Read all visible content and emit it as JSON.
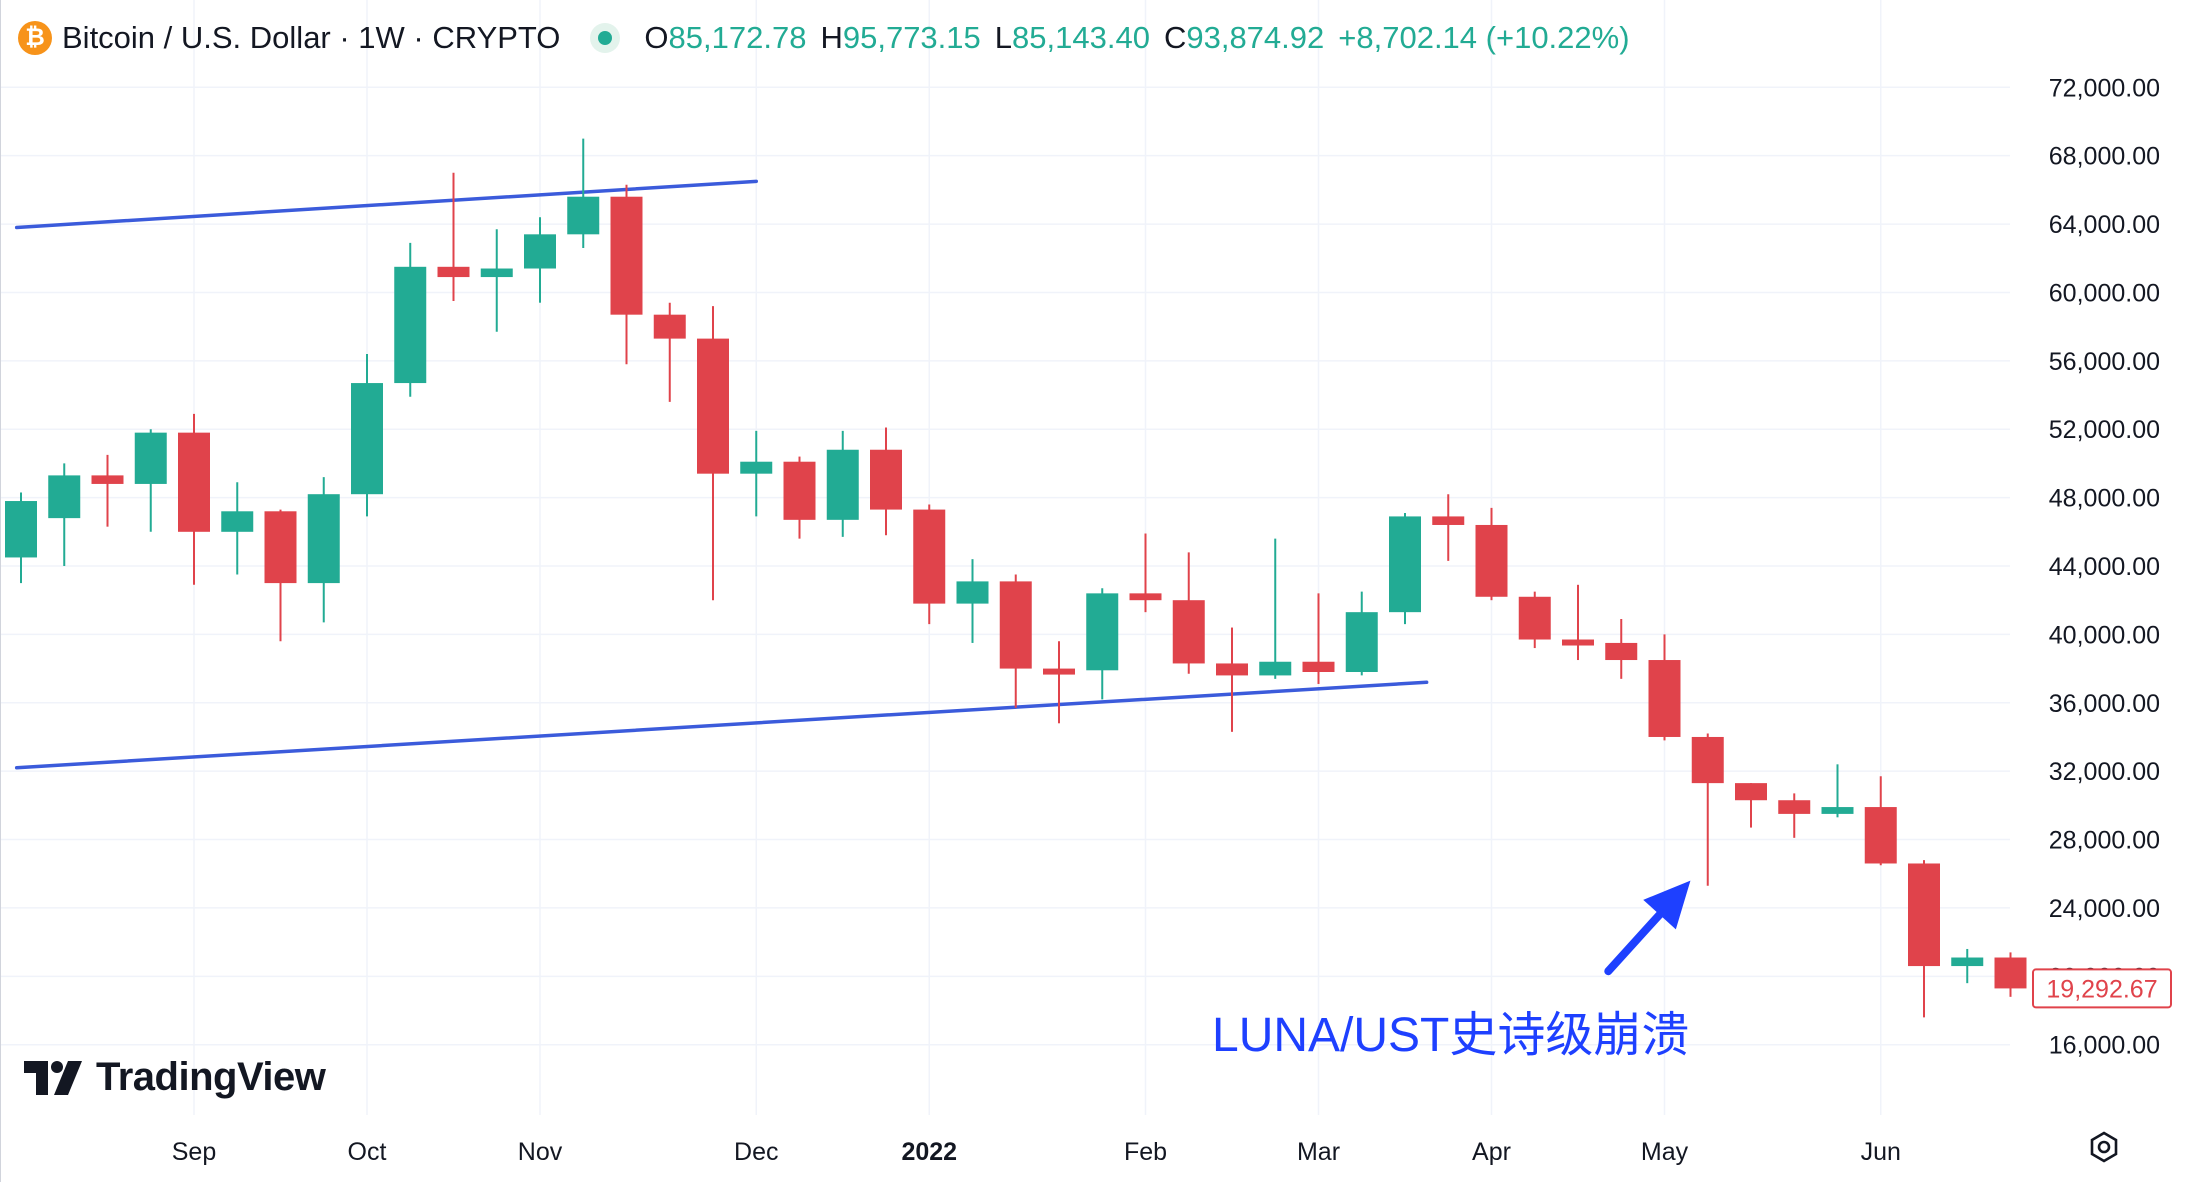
{
  "header": {
    "symbol_title": "Bitcoin / U.S. Dollar · 1W · CRYPTO",
    "icon": "bitcoin-icon",
    "open_label": "O",
    "open_value": "85,172.78",
    "high_label": "H",
    "high_value": "95,773.15",
    "low_label": "L",
    "low_value": "85,143.40",
    "close_label": "C",
    "close_value": "93,874.92",
    "change_value": "+8,702.14 (+10.22%)"
  },
  "logo": {
    "text": "TradingView"
  },
  "annotation": {
    "text": "LUNA/UST史诗级崩溃"
  },
  "colors": {
    "up": "#22ab94",
    "down": "#e0434b",
    "trendline": "#3b5bdb",
    "arrow": "#1e40ff",
    "grid": "#f0f3fa"
  },
  "chart_data": {
    "type": "candlestick",
    "interval": "1W",
    "y_axis": {
      "range": [
        13000,
        75000
      ],
      "ticks": [
        72000,
        68000,
        64000,
        60000,
        56000,
        52000,
        48000,
        44000,
        40000,
        36000,
        32000,
        28000,
        24000,
        20000,
        16000
      ],
      "tick_labels": [
        "72,000.00",
        "68,000.00",
        "64,000.00",
        "60,000.00",
        "56,000.00",
        "52,000.00",
        "48,000.00",
        "44,000.00",
        "40,000.00",
        "36,000.00",
        "32,000.00",
        "28,000.00",
        "24,000.00",
        "20,000.00",
        "16,000.00"
      ]
    },
    "x_axis": {
      "labels": [
        {
          "text": "Sep",
          "index": 4,
          "bold": false
        },
        {
          "text": "Oct",
          "index": 8,
          "bold": false
        },
        {
          "text": "Nov",
          "index": 12,
          "bold": false
        },
        {
          "text": "Dec",
          "index": 17,
          "bold": false
        },
        {
          "text": "2022",
          "index": 21,
          "bold": true
        },
        {
          "text": "Feb",
          "index": 26,
          "bold": false
        },
        {
          "text": "Mar",
          "index": 30,
          "bold": false
        },
        {
          "text": "Apr",
          "index": 34,
          "bold": false
        },
        {
          "text": "May",
          "index": 38,
          "bold": false
        },
        {
          "text": "Jun",
          "index": 43,
          "bold": false
        }
      ]
    },
    "candles": [
      {
        "o": 44500,
        "h": 48300,
        "l": 43000,
        "c": 47800
      },
      {
        "o": 46800,
        "h": 50000,
        "l": 44000,
        "c": 49300
      },
      {
        "o": 49300,
        "h": 50500,
        "l": 46300,
        "c": 48800
      },
      {
        "o": 48800,
        "h": 52000,
        "l": 46000,
        "c": 51800
      },
      {
        "o": 51800,
        "h": 52900,
        "l": 42900,
        "c": 46000
      },
      {
        "o": 46000,
        "h": 48900,
        "l": 43500,
        "c": 47200
      },
      {
        "o": 47200,
        "h": 47300,
        "l": 39600,
        "c": 43000
      },
      {
        "o": 43000,
        "h": 49200,
        "l": 40700,
        "c": 48200
      },
      {
        "o": 48200,
        "h": 56400,
        "l": 46900,
        "c": 54700
      },
      {
        "o": 54700,
        "h": 62900,
        "l": 53900,
        "c": 61500
      },
      {
        "o": 61500,
        "h": 67000,
        "l": 59500,
        "c": 60900
      },
      {
        "o": 60900,
        "h": 63700,
        "l": 57700,
        "c": 61400
      },
      {
        "o": 61400,
        "h": 64400,
        "l": 59400,
        "c": 63400
      },
      {
        "o": 63400,
        "h": 69000,
        "l": 62600,
        "c": 65600
      },
      {
        "o": 65600,
        "h": 66300,
        "l": 55800,
        "c": 58700
      },
      {
        "o": 58700,
        "h": 59400,
        "l": 53600,
        "c": 57300
      },
      {
        "o": 57300,
        "h": 59200,
        "l": 42000,
        "c": 49400
      },
      {
        "o": 49400,
        "h": 51900,
        "l": 46900,
        "c": 50100
      },
      {
        "o": 50100,
        "h": 50400,
        "l": 45600,
        "c": 46700
      },
      {
        "o": 46700,
        "h": 51900,
        "l": 45700,
        "c": 50800
      },
      {
        "o": 50800,
        "h": 52100,
        "l": 45800,
        "c": 47300
      },
      {
        "o": 47300,
        "h": 47600,
        "l": 40600,
        "c": 41800
      },
      {
        "o": 41800,
        "h": 44400,
        "l": 39500,
        "c": 43100
      },
      {
        "o": 43100,
        "h": 43500,
        "l": 35700,
        "c": 38000
      },
      {
        "o": 38000,
        "h": 39600,
        "l": 34800,
        "c": 37900
      },
      {
        "o": 37900,
        "h": 42700,
        "l": 36200,
        "c": 42400
      },
      {
        "o": 42400,
        "h": 45900,
        "l": 41300,
        "c": 42000
      },
      {
        "o": 42000,
        "h": 44800,
        "l": 37700,
        "c": 38300
      },
      {
        "o": 38300,
        "h": 40400,
        "l": 34300,
        "c": 37600
      },
      {
        "o": 37600,
        "h": 45600,
        "l": 37400,
        "c": 38400
      },
      {
        "o": 38400,
        "h": 42400,
        "l": 37100,
        "c": 37800
      },
      {
        "o": 37800,
        "h": 42500,
        "l": 37600,
        "c": 41300
      },
      {
        "o": 41300,
        "h": 47100,
        "l": 40600,
        "c": 46900
      },
      {
        "o": 46900,
        "h": 48200,
        "l": 44300,
        "c": 46400
      },
      {
        "o": 46400,
        "h": 47400,
        "l": 42000,
        "c": 42200
      },
      {
        "o": 42200,
        "h": 42500,
        "l": 39200,
        "c": 39700
      },
      {
        "o": 39700,
        "h": 42900,
        "l": 38500,
        "c": 39500
      },
      {
        "o": 39500,
        "h": 40900,
        "l": 37400,
        "c": 38500
      },
      {
        "o": 38500,
        "h": 40000,
        "l": 33800,
        "c": 34000
      },
      {
        "o": 34000,
        "h": 34200,
        "l": 25300,
        "c": 31300
      },
      {
        "o": 31300,
        "h": 31300,
        "l": 28700,
        "c": 30300
      },
      {
        "o": 30300,
        "h": 30700,
        "l": 28100,
        "c": 29500
      },
      {
        "o": 29500,
        "h": 32400,
        "l": 29300,
        "c": 29900
      },
      {
        "o": 29900,
        "h": 31700,
        "l": 26500,
        "c": 26600
      },
      {
        "o": 26600,
        "h": 26800,
        "l": 17600,
        "c": 20600
      },
      {
        "o": 20600,
        "h": 21600,
        "l": 19600,
        "c": 21100
      },
      {
        "o": 21100,
        "h": 21400,
        "l": 18800,
        "c": 19292.67
      }
    ],
    "last_price_label": "19,292.67",
    "trendlines": [
      {
        "x1": -0.1,
        "y1": 63800,
        "x2": 17.0,
        "y2": 66500
      },
      {
        "x1": -0.1,
        "y1": 32200,
        "x2": 32.5,
        "y2": 37200
      }
    ],
    "arrow": {
      "from_index": 36.7,
      "from_value": 20300,
      "to_index": 38.6,
      "to_value": 25600
    }
  }
}
